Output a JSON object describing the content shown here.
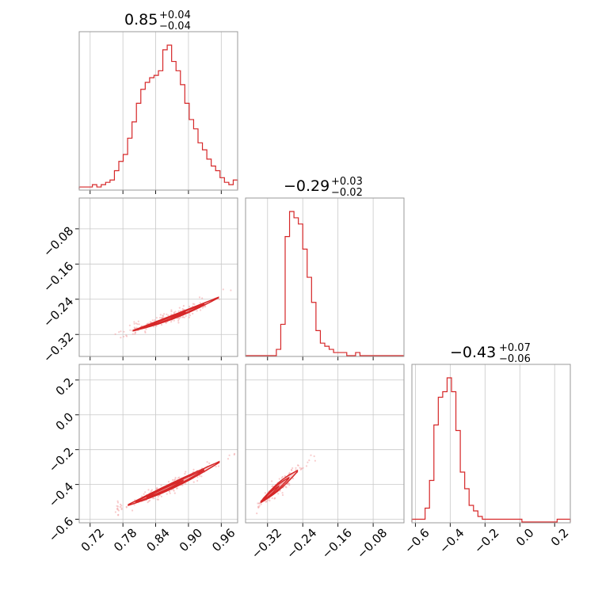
{
  "chart_data": {
    "type": "corner",
    "line_color": "#d62728",
    "point_color": "#f3a3a4",
    "parameters": [
      {
        "title": "0.85",
        "upper": "+0.04",
        "lower": "−0.04",
        "range": [
          0.7,
          0.99
        ],
        "ticks": [
          0.72,
          0.78,
          0.84,
          0.9,
          0.96
        ],
        "tick_labels": [
          "0.72",
          "0.78",
          "0.84",
          "0.90",
          "0.96"
        ]
      },
      {
        "title": "−0.29",
        "upper": "+0.03",
        "lower": "−0.02",
        "range": [
          -0.37,
          -0.01
        ],
        "ticks": [
          -0.32,
          -0.24,
          -0.16,
          -0.08
        ],
        "tick_labels": [
          "−0.32",
          "−0.24",
          "−0.16",
          "−0.08"
        ]
      },
      {
        "title": "−0.43",
        "upper": "+0.07",
        "lower": "−0.06",
        "range": [
          -0.62,
          0.29
        ],
        "ticks": [
          -0.6,
          -0.4,
          -0.2,
          0.0,
          0.2
        ],
        "tick_labels": [
          "−0.6",
          "−0.4",
          "−0.2",
          "0.0",
          "0.2"
        ]
      }
    ],
    "histograms": [
      {
        "param": 0,
        "bin_range": [
          0.7,
          0.99
        ],
        "counts": [
          1,
          1,
          1,
          2,
          1,
          2,
          3,
          4,
          8,
          12,
          15,
          22,
          29,
          37,
          43,
          46,
          48,
          49,
          51,
          60,
          62,
          55,
          51,
          45,
          37,
          30,
          26,
          20,
          17,
          13,
          10,
          8,
          5,
          3,
          2,
          4
        ]
      },
      {
        "param": 1,
        "bin_range": [
          -0.37,
          -0.01
        ],
        "counts": [
          0,
          0,
          0,
          0,
          0,
          0,
          0,
          2,
          10,
          38,
          46,
          44,
          42,
          34,
          25,
          17,
          8,
          4,
          3,
          2,
          1,
          1,
          1,
          0,
          0,
          1,
          0,
          0,
          0,
          0,
          0,
          0,
          0,
          0,
          0,
          0
        ]
      },
      {
        "param": 2,
        "bin_range": [
          -0.62,
          0.29
        ],
        "counts": [
          1,
          1,
          1,
          5,
          15,
          35,
          45,
          47,
          52,
          47,
          33,
          18,
          12,
          6,
          4,
          2,
          1,
          1,
          1,
          1,
          1,
          1,
          1,
          1,
          1,
          0,
          0,
          0,
          0,
          0,
          0,
          0,
          0,
          1,
          1,
          1
        ]
      }
    ],
    "scatter": [
      {
        "x_param": 0,
        "y_param": 1,
        "curve": {
          "x0": 0.78,
          "x1": 0.97,
          "y0": -0.318,
          "y1": -0.227,
          "curvature": 0.025
        },
        "contour_levels": [
          {
            "u0": 0.1,
            "u1": 0.92,
            "width": 0.012,
            "fill": "#f9d3d3"
          },
          {
            "u0": 0.16,
            "u1": 0.78,
            "width": 0.008,
            "fill": "#f3aeaf"
          },
          {
            "u0": 0.22,
            "u1": 0.6,
            "width": 0.005,
            "fill": "#ea8a8b"
          }
        ]
      },
      {
        "x_param": 0,
        "y_param": 2,
        "curve": {
          "x0": 0.78,
          "x1": 0.98,
          "y0": -0.53,
          "y1": -0.23,
          "curvature": 0.05
        },
        "contour_levels": [
          {
            "u0": 0.05,
            "u1": 0.88,
            "width": 0.018,
            "fill": "#f9d3d3"
          },
          {
            "u0": 0.12,
            "u1": 0.74,
            "width": 0.012,
            "fill": "#f3aeaf"
          },
          {
            "u0": 0.22,
            "u1": 0.55,
            "width": 0.007,
            "fill": "#ea8a8b"
          }
        ]
      },
      {
        "x_param": 1,
        "y_param": 2,
        "curve": {
          "x0": -0.335,
          "x1": -0.22,
          "y0": -0.5,
          "y1": -0.26,
          "curvature": -0.02
        },
        "contour_levels": [
          {
            "u0": 0.0,
            "u1": 0.72,
            "width": 0.024,
            "fill": "#f9d3d3"
          },
          {
            "u0": 0.02,
            "u1": 0.55,
            "width": 0.016,
            "fill": "#f3aeaf"
          },
          {
            "u0": 0.05,
            "u1": 0.35,
            "width": 0.008,
            "fill": "#ea8a8b"
          }
        ]
      }
    ]
  }
}
